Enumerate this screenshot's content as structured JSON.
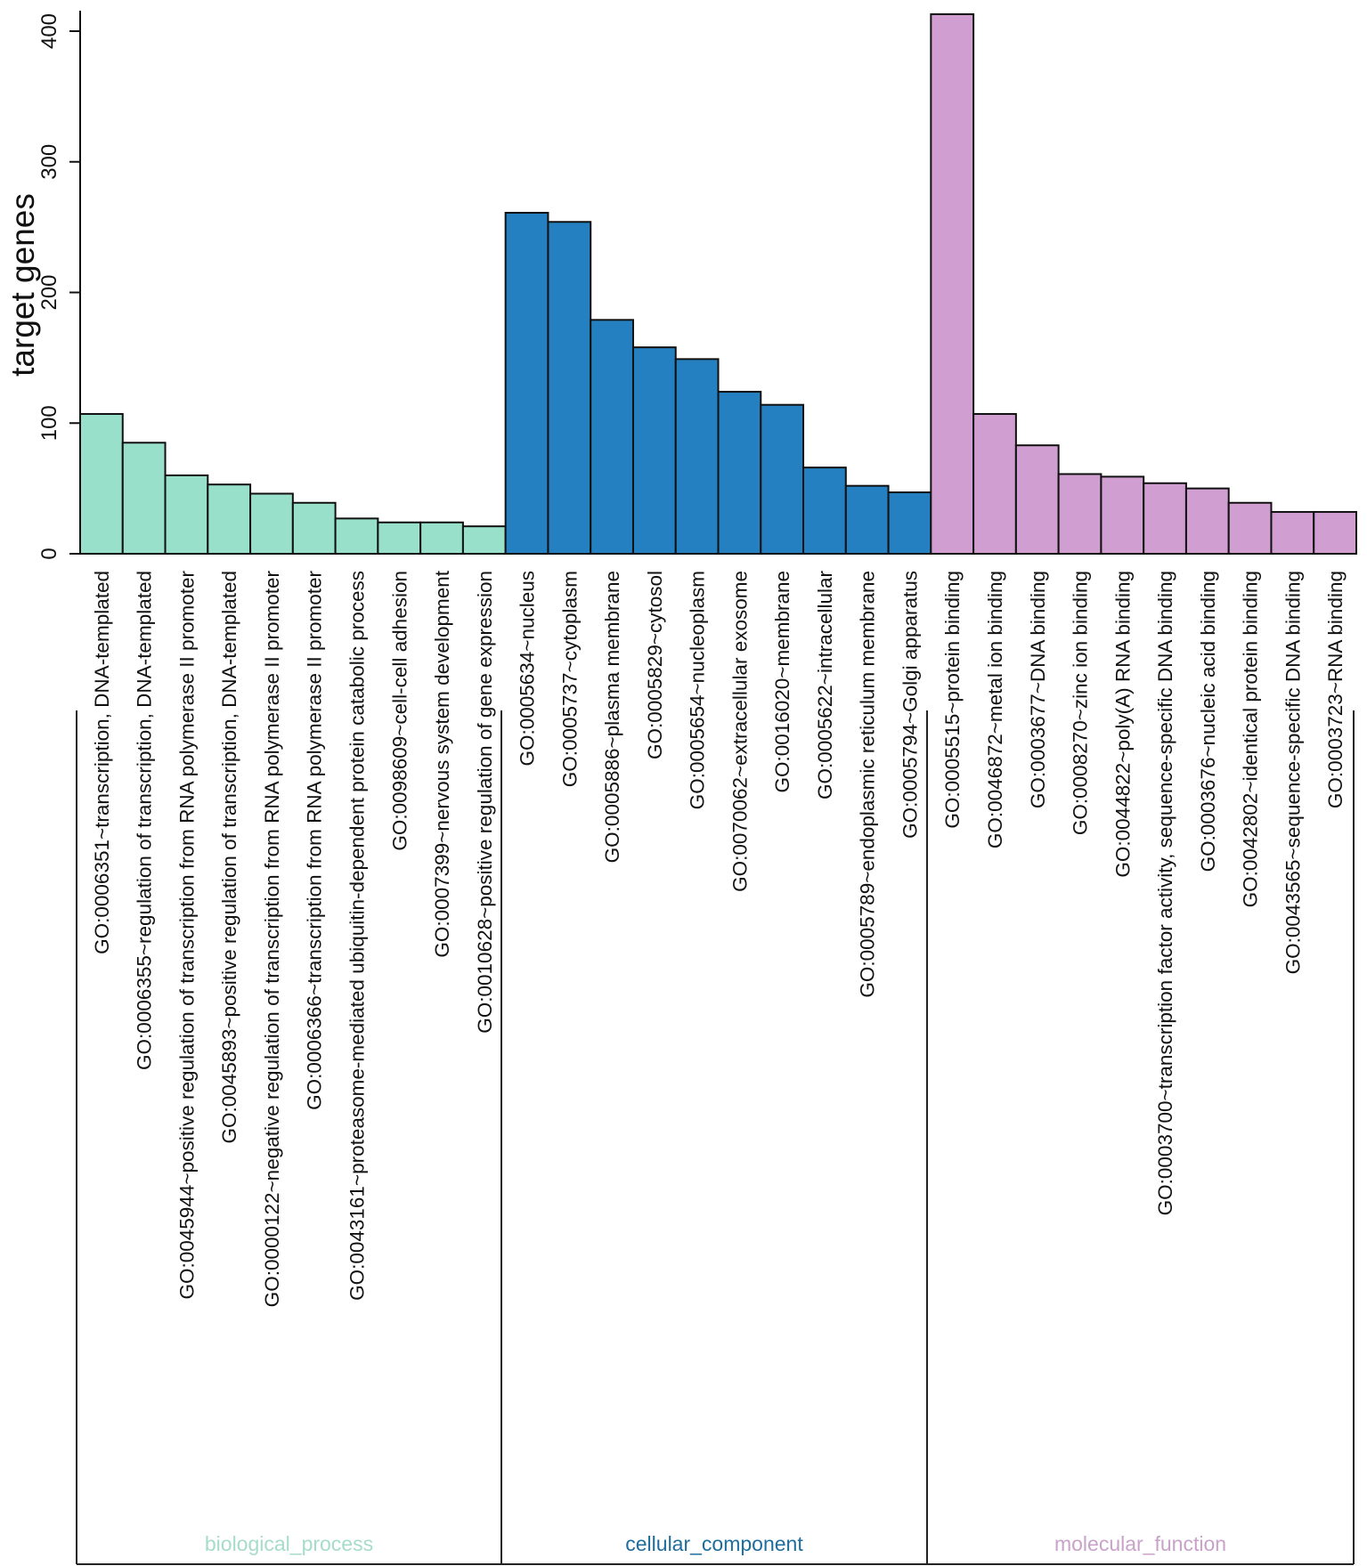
{
  "chart_data": {
    "type": "bar",
    "title": "",
    "xlabel": "",
    "ylabel": "target genes",
    "ylim": [
      0,
      410
    ],
    "yticks": [
      "0",
      "100",
      "200",
      "300",
      "400"
    ],
    "grid": false,
    "groups": [
      {
        "name": "biological_process",
        "color": "#99e0cb",
        "label_color": "#a6dcc8",
        "categories": [
          "GO:0006351~transcription, DNA-templated",
          "GO:0006355~regulation of transcription, DNA-templated",
          "GO:0045944~positive regulation of transcription from RNA polymerase II promoter",
          "GO:0045893~positive regulation of transcription, DNA-templated",
          "GO:0000122~negative regulation of transcription from RNA polymerase II promoter",
          "GO:0006366~transcription from RNA polymerase II promoter",
          "GO:0043161~proteasome-mediated ubiquitin-dependent protein catabolic process",
          "GO:0098609~cell-cell adhesion",
          "GO:0007399~nervous system development",
          "GO:0010628~positive regulation of gene expression"
        ],
        "values": [
          107,
          85,
          60,
          53,
          46,
          39,
          27,
          24,
          24,
          21
        ]
      },
      {
        "name": "cellular_component",
        "color": "#2480c0",
        "label_color": "#1f6d9c",
        "categories": [
          "GO:0005634~nucleus",
          "GO:0005737~cytoplasm",
          "GO:0005886~plasma membrane",
          "GO:0005829~cytosol",
          "GO:0005654~nucleoplasm",
          "GO:0070062~extracellular exosome",
          "GO:0016020~membrane",
          "GO:0005622~intracellular",
          "GO:0005789~endoplasmic reticulum membrane",
          "GO:0005794~Golgi apparatus"
        ],
        "values": [
          261,
          254,
          179,
          158,
          149,
          124,
          114,
          66,
          52,
          47
        ]
      },
      {
        "name": "molecular_function",
        "color": "#d09ed0",
        "label_color": "#c9a2c9",
        "categories": [
          "GO:0005515~protein binding",
          "GO:0046872~metal ion binding",
          "GO:0003677~DNA binding",
          "GO:0008270~zinc ion binding",
          "GO:0044822~poly(A) RNA binding",
          "GO:0003700~transcription factor activity, sequence-specific DNA binding",
          "GO:0003676~nucleic acid binding",
          "GO:0042802~identical protein binding",
          "GO:0043565~sequence-specific DNA binding",
          "GO:0003723~RNA binding"
        ],
        "values": [
          413,
          107,
          83,
          61,
          59,
          54,
          50,
          39,
          32,
          32
        ]
      }
    ]
  }
}
